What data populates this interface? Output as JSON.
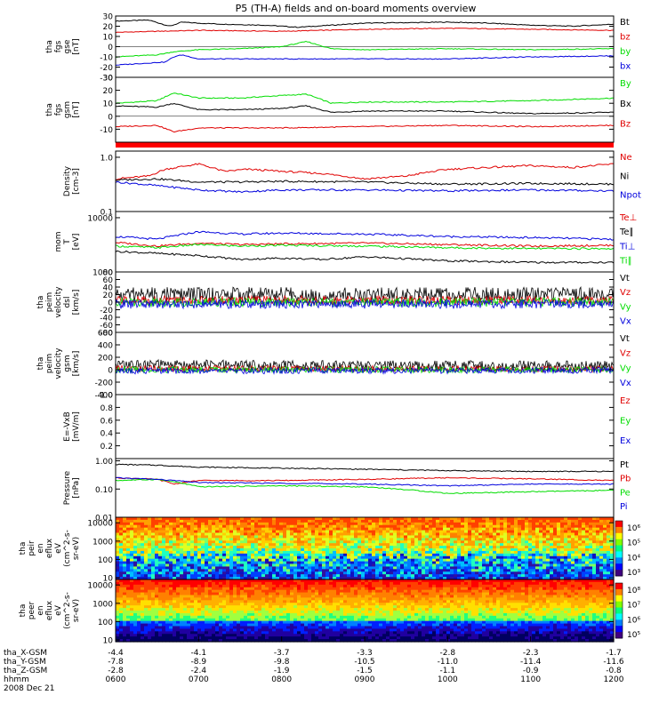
{
  "title": "P5 (TH-A) fields and on-board moments overview",
  "colors": {
    "black": "#000000",
    "red": "#e00000",
    "green": "#00dd00",
    "blue": "#0000dd",
    "band": "#ff0000",
    "frame": "#000000"
  },
  "chart_data": [
    {
      "id": "fgs-gse",
      "type": "line",
      "ylabel": [
        "tha",
        "fgs",
        "gse",
        "[nT]"
      ],
      "ylim": [
        -30,
        30
      ],
      "yticks": [
        30,
        20,
        10,
        0,
        -10,
        -20,
        -30
      ],
      "series": [
        {
          "name": "Bt",
          "color": "black",
          "x": [
            6.0,
            6.4,
            6.65,
            6.8,
            7.0,
            7.3,
            7.8,
            8.2,
            9.0,
            10.0,
            10.5,
            11.0,
            11.5,
            12.0
          ],
          "y": [
            25,
            26,
            20,
            24,
            23,
            22,
            21,
            19,
            23,
            24,
            23,
            21,
            20,
            22
          ]
        },
        {
          "name": "bz",
          "color": "red",
          "x": [
            6.0,
            6.5,
            7.0,
            8.0,
            9.0,
            10.0,
            11.0,
            12.0
          ],
          "y": [
            14,
            15,
            16,
            15,
            17,
            18,
            17,
            16
          ]
        },
        {
          "name": "by",
          "color": "green",
          "x": [
            6.0,
            6.5,
            6.7,
            7.0,
            7.5,
            8.0,
            8.3,
            8.6,
            9.0,
            10.0,
            11.0,
            12.0
          ],
          "y": [
            -10,
            -8,
            -5,
            -3,
            -2,
            0,
            5,
            -2,
            -3,
            -2,
            -3,
            -2
          ]
        },
        {
          "name": "bx",
          "color": "blue",
          "x": [
            6.0,
            6.6,
            6.7,
            6.8,
            7.0,
            8.0,
            9.0,
            10.0,
            11.0,
            12.0
          ],
          "y": [
            -18,
            -15,
            -10,
            -8,
            -12,
            -12,
            -12,
            -12,
            -10,
            -9
          ]
        }
      ]
    },
    {
      "id": "fgs-gsm",
      "type": "line",
      "ylabel": [
        "tha",
        "fgs",
        "gsm",
        "[nT]"
      ],
      "ylim": [
        -20,
        30
      ],
      "yticks": [
        30,
        20,
        10,
        0,
        -10
      ],
      "series": [
        {
          "name": "By",
          "color": "green",
          "x": [
            6.0,
            6.5,
            6.7,
            7.0,
            7.5,
            8.0,
            8.3,
            8.6,
            9.0,
            10.0,
            11.0,
            12.0
          ],
          "y": [
            10,
            12,
            18,
            14,
            14,
            16,
            17,
            10,
            11,
            11,
            12,
            14
          ]
        },
        {
          "name": "Bx",
          "color": "black",
          "x": [
            6.0,
            6.5,
            6.7,
            7.0,
            7.5,
            8.0,
            8.3,
            8.6,
            9.0,
            10.0,
            11.0,
            12.0
          ],
          "y": [
            8,
            7,
            10,
            5,
            5,
            6,
            8,
            3,
            4,
            4,
            2,
            3
          ]
        },
        {
          "name": "Bz",
          "color": "red",
          "x": [
            6.0,
            6.5,
            6.7,
            7.0,
            8.0,
            9.0,
            10.0,
            11.0,
            12.0
          ],
          "y": [
            -8,
            -7,
            -12,
            -9,
            -9,
            -8,
            -7,
            -8,
            -7
          ]
        }
      ]
    },
    {
      "id": "density",
      "type": "line",
      "ylabel": [
        "Density",
        "[cm-3]"
      ],
      "log": true,
      "ylim": [
        0.1,
        1.3
      ],
      "ytick_labels": [
        "1.0",
        "0.1"
      ],
      "yticks": [
        1.0,
        0.1
      ],
      "series": [
        {
          "name": "Ne",
          "color": "red",
          "x": [
            6.0,
            6.4,
            6.6,
            7.0,
            7.3,
            7.6,
            8.0,
            8.5,
            9.0,
            9.5,
            10.0,
            10.5,
            11.0,
            11.5,
            12.0
          ],
          "y": [
            0.4,
            0.45,
            0.6,
            0.75,
            0.55,
            0.6,
            0.55,
            0.5,
            0.4,
            0.45,
            0.6,
            0.65,
            0.7,
            0.65,
            0.75
          ]
        },
        {
          "name": "Ni",
          "color": "black",
          "x": [
            6.0,
            6.5,
            7.0,
            7.5,
            8.0,
            9.0,
            10.0,
            11.0,
            12.0
          ],
          "y": [
            0.38,
            0.4,
            0.35,
            0.35,
            0.36,
            0.35,
            0.32,
            0.33,
            0.32
          ]
        },
        {
          "name": "Npot",
          "color": "blue",
          "x": [
            6.0,
            6.5,
            7.0,
            7.5,
            8.0,
            9.0,
            10.0,
            11.0,
            12.0
          ],
          "y": [
            0.35,
            0.3,
            0.25,
            0.23,
            0.25,
            0.25,
            0.24,
            0.25,
            0.24
          ]
        }
      ]
    },
    {
      "id": "temperature",
      "type": "line",
      "ylabel": [
        "mom",
        "T",
        "[eV]"
      ],
      "log": true,
      "ylim": [
        1000,
        13000
      ],
      "ytick_labels": [
        "10000",
        "1000"
      ],
      "yticks": [
        10000,
        1000
      ],
      "series": [
        {
          "name": "Te⊥",
          "color": "red",
          "x": [
            6.0,
            6.5,
            7.0,
            7.5,
            8.0,
            9.0,
            10.0,
            11.0,
            12.0
          ],
          "y": [
            3500,
            3000,
            3400,
            3200,
            3300,
            3400,
            3200,
            3000,
            3100
          ]
        },
        {
          "name": "Te∥",
          "color": "black",
          "x": [
            6.0,
            6.5,
            7.0,
            7.5,
            8.0,
            8.5,
            9.0,
            10.0,
            11.0,
            12.0
          ],
          "y": [
            2400,
            2200,
            2000,
            1700,
            1800,
            1700,
            1900,
            1600,
            1500,
            1500
          ]
        },
        {
          "name": "Ti⊥",
          "color": "blue",
          "x": [
            6.0,
            6.5,
            7.0,
            7.5,
            8.0,
            9.0,
            10.0,
            11.0,
            12.0
          ],
          "y": [
            4500,
            4000,
            5500,
            5000,
            5200,
            5000,
            4500,
            4300,
            4000
          ]
        },
        {
          "name": "Ti∥",
          "color": "green",
          "x": [
            6.0,
            6.5,
            7.0,
            7.5,
            8.0,
            9.0,
            10.0,
            11.0,
            12.0
          ],
          "y": [
            3000,
            2800,
            3200,
            3000,
            3100,
            3000,
            2800,
            2700,
            2700
          ]
        }
      ]
    },
    {
      "id": "peim-dsl",
      "type": "line",
      "ylabel": [
        "tha",
        "peim",
        "velocity",
        "dsl",
        "[km/s]"
      ],
      "ylim": [
        -80,
        80
      ],
      "yticks": [
        80,
        60,
        40,
        20,
        0,
        -20,
        -40,
        -60,
        -80
      ],
      "series": [
        {
          "name": "Vt",
          "color": "black",
          "x": [
            6.0,
            12.0
          ],
          "y": [
            20,
            20
          ]
        },
        {
          "name": "Vz",
          "color": "red",
          "x": [
            6.0,
            12.0
          ],
          "y": [
            5,
            5
          ]
        },
        {
          "name": "Vy",
          "color": "green",
          "x": [
            6.0,
            12.0
          ],
          "y": [
            0,
            0
          ]
        },
        {
          "name": "Vx",
          "color": "blue",
          "x": [
            6.0,
            12.0
          ],
          "y": [
            -5,
            -5
          ]
        }
      ]
    },
    {
      "id": "peim-gsm",
      "type": "line",
      "ylabel": [
        "tha",
        "peim",
        "velocity",
        "gsm",
        "[km/s]"
      ],
      "ylim": [
        -400,
        600
      ],
      "yticks": [
        600,
        400,
        200,
        0,
        -200,
        -400
      ],
      "series": [
        {
          "name": "Vt",
          "color": "black",
          "x": [
            6.0,
            12.0
          ],
          "y": [
            80,
            60
          ]
        },
        {
          "name": "Vz",
          "color": "red",
          "x": [
            6.0,
            12.0
          ],
          "y": [
            20,
            10
          ]
        },
        {
          "name": "Vy",
          "color": "green",
          "x": [
            6.0,
            12.0
          ],
          "y": [
            0,
            0
          ]
        },
        {
          "name": "Vx",
          "color": "blue",
          "x": [
            6.0,
            12.0
          ],
          "y": [
            -20,
            -10
          ]
        }
      ]
    },
    {
      "id": "efield",
      "type": "line",
      "ylabel": [
        "E=-VxB",
        "[mV/m]"
      ],
      "ylim": [
        0,
        1.0
      ],
      "yticks": [
        1.0,
        0.8,
        0.6,
        0.4,
        0.2
      ],
      "ytick_labels": [
        "1.0",
        "0.8",
        "0.6",
        "0.4",
        "0.2"
      ],
      "series": [
        {
          "name": "Ez",
          "color": "red",
          "x": [],
          "y": []
        },
        {
          "name": "Ey",
          "color": "green",
          "x": [],
          "y": []
        },
        {
          "name": "Ex",
          "color": "blue",
          "x": [],
          "y": []
        }
      ]
    },
    {
      "id": "pressure",
      "type": "line",
      "ylabel": [
        "Pressure",
        "[nPa]"
      ],
      "log": true,
      "ylim": [
        0.01,
        1.2
      ],
      "ytick_labels": [
        "1.00",
        "0.10",
        "0.01"
      ],
      "yticks": [
        1.0,
        0.1,
        0.01
      ],
      "series": [
        {
          "name": "Pt",
          "color": "black",
          "x": [
            6.0,
            6.5,
            7.0,
            8.0,
            9.0,
            10.0,
            11.0,
            12.0
          ],
          "y": [
            0.75,
            0.7,
            0.6,
            0.55,
            0.5,
            0.45,
            0.42,
            0.42
          ]
        },
        {
          "name": "Pb",
          "color": "red",
          "x": [
            6.0,
            6.5,
            6.7,
            7.0,
            8.0,
            9.0,
            10.0,
            11.0,
            12.0
          ],
          "y": [
            0.25,
            0.22,
            0.15,
            0.2,
            0.2,
            0.22,
            0.25,
            0.23,
            0.2
          ]
        },
        {
          "name": "Pe",
          "color": "green",
          "x": [
            6.0,
            6.5,
            7.0,
            8.0,
            9.0,
            10.0,
            11.0,
            12.0
          ],
          "y": [
            0.2,
            0.22,
            0.12,
            0.13,
            0.12,
            0.07,
            0.08,
            0.09
          ]
        },
        {
          "name": "Pi",
          "color": "blue",
          "x": [
            6.0,
            6.5,
            7.0,
            8.0,
            9.0,
            10.0,
            11.0,
            12.0
          ],
          "y": [
            0.25,
            0.22,
            0.17,
            0.16,
            0.15,
            0.13,
            0.15,
            0.15
          ]
        }
      ]
    },
    {
      "id": "peir-efl",
      "type": "heatmap",
      "ylabel": [
        "tha",
        "peir",
        "en",
        "eflux",
        "eV",
        "(cm^2-s-",
        "sr-eV)"
      ],
      "log": true,
      "ylim": [
        8,
        20000
      ],
      "ytick_labels": [
        "10000",
        "1000",
        "100",
        "10"
      ],
      "yticks": [
        10000,
        1000,
        100,
        10
      ],
      "colorbar_labels": [
        "10⁶",
        "10⁵",
        "10⁴",
        "10³"
      ]
    },
    {
      "id": "peer-efl",
      "type": "heatmap",
      "ylabel": [
        "tha",
        "peer",
        "en",
        "eflux",
        "eV",
        "(cm^2-s-",
        "sr-eV)"
      ],
      "log": true,
      "ylim": [
        8,
        20000
      ],
      "ytick_labels": [
        "10000",
        "1000",
        "100",
        "10"
      ],
      "yticks": [
        10000,
        1000,
        100,
        10
      ],
      "colorbar_labels": [
        "10⁸",
        "10⁷",
        "10⁶",
        "10⁵"
      ]
    }
  ],
  "xaxis": {
    "range": [
      6.0,
      12.0
    ],
    "rows": [
      {
        "label": "tha_X-GSM",
        "values": [
          "-4.4",
          "-4.1",
          "-3.7",
          "-3.3",
          "-2.8",
          "-2.3",
          "-1.7"
        ]
      },
      {
        "label": "tha_Y-GSM",
        "values": [
          "-7.8",
          "-8.9",
          "-9.8",
          "-10.5",
          "-11.0",
          "-11.4",
          "-11.6"
        ]
      },
      {
        "label": "tha_Z-GSM",
        "values": [
          "-2.8",
          "-2.4",
          "-1.9",
          "-1.5",
          "-1.1",
          "-0.9",
          "-0.8"
        ]
      },
      {
        "label": "hhmm",
        "values": [
          "0600",
          "0700",
          "0800",
          "0900",
          "1000",
          "1100",
          "1200"
        ]
      }
    ],
    "date": "2008 Dec 21"
  }
}
